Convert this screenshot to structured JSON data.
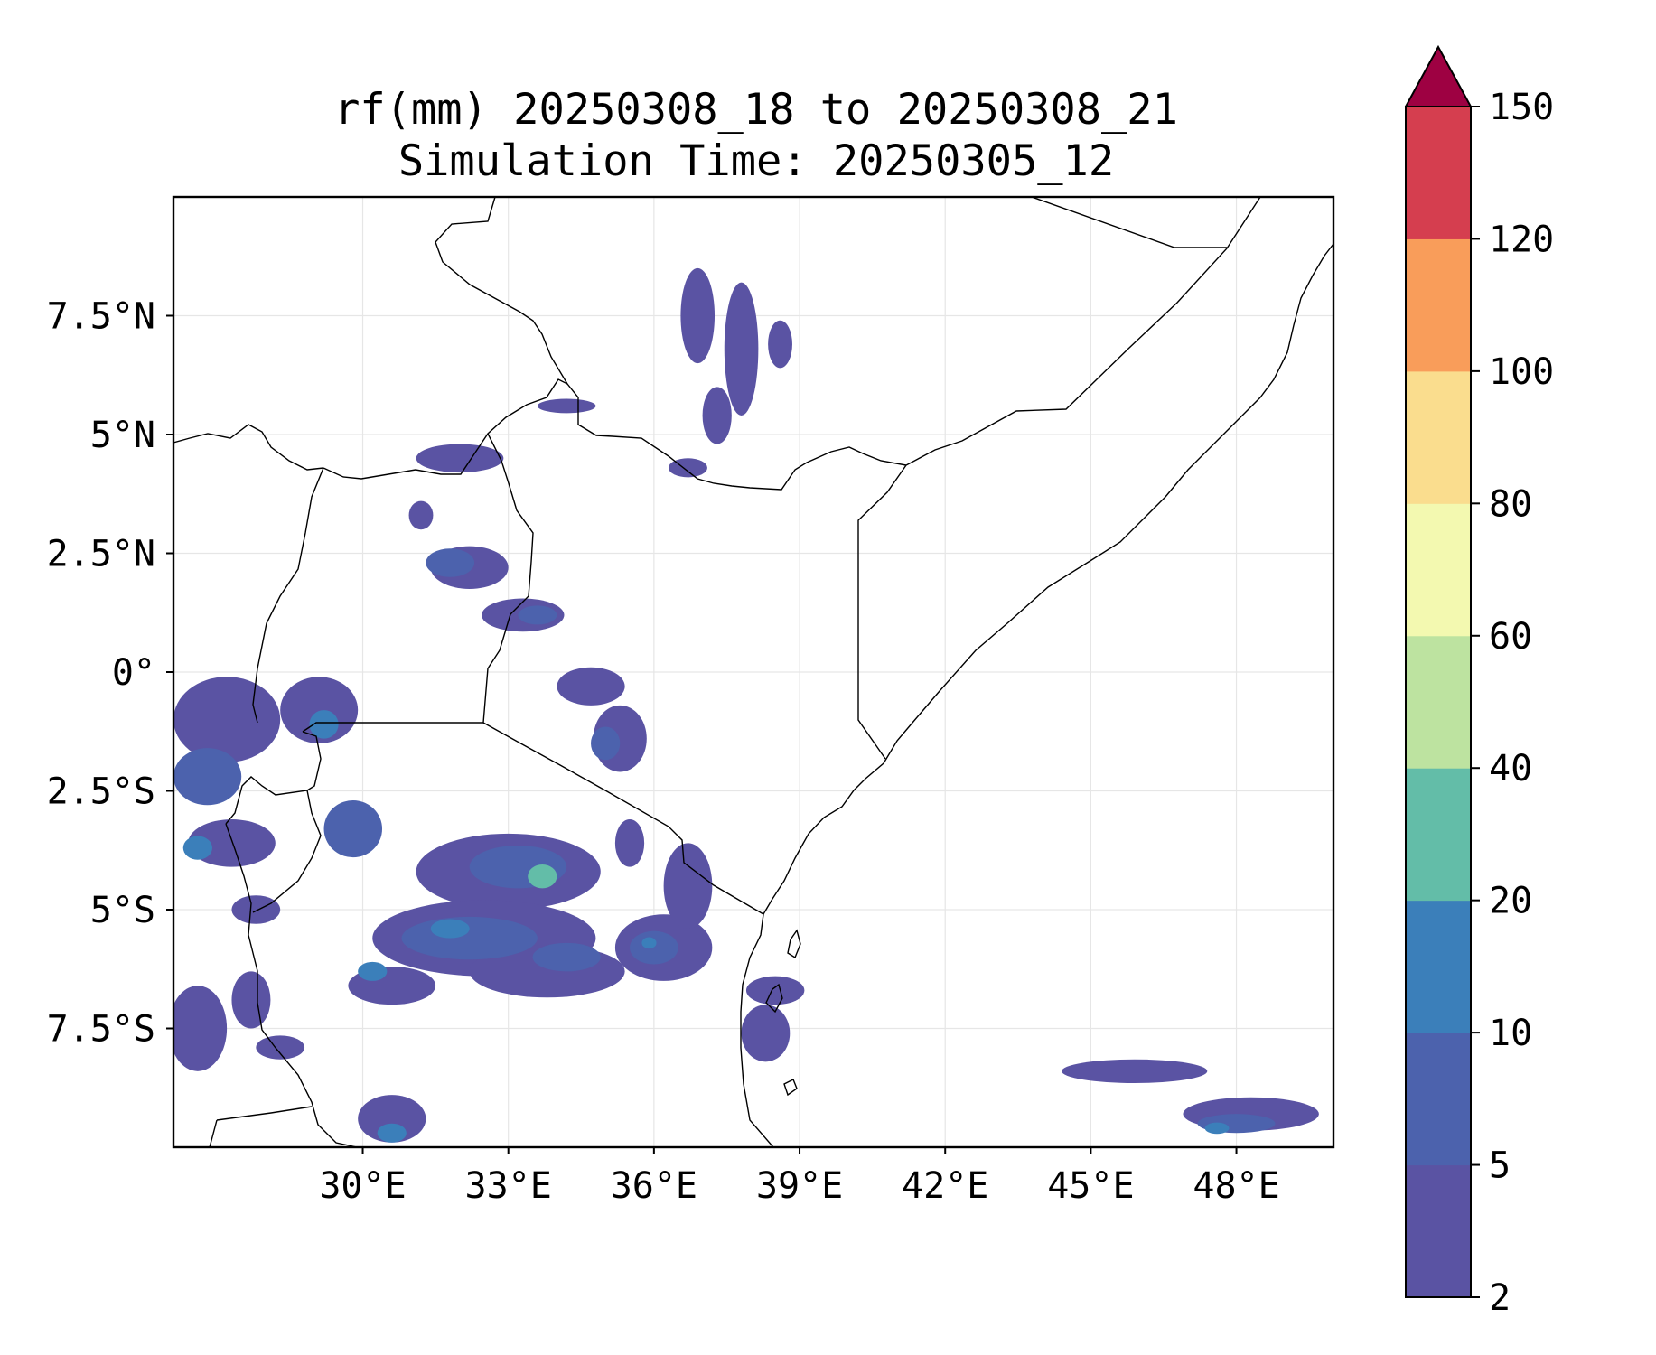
{
  "title": {
    "line1": "rf(mm) 20250308_18 to 20250308_21",
    "line2": "Simulation Time: 20250305_12"
  },
  "map": {
    "lon_range": [
      26.1,
      50.0
    ],
    "lat_range": [
      -10.0,
      10.0
    ],
    "x_ticks": [
      {
        "value": 30,
        "label": "30°E"
      },
      {
        "value": 33,
        "label": "33°E"
      },
      {
        "value": 36,
        "label": "36°E"
      },
      {
        "value": 39,
        "label": "39°E"
      },
      {
        "value": 42,
        "label": "42°E"
      },
      {
        "value": 45,
        "label": "45°E"
      },
      {
        "value": 48,
        "label": "48°E"
      }
    ],
    "y_ticks": [
      {
        "value": 7.5,
        "label": "7.5°N"
      },
      {
        "value": 5,
        "label": "5°N"
      },
      {
        "value": 2.5,
        "label": "2.5°N"
      },
      {
        "value": 0,
        "label": "0°"
      },
      {
        "value": -2.5,
        "label": "2.5°S"
      },
      {
        "value": -5,
        "label": "5°S"
      },
      {
        "value": -7.5,
        "label": "7.5°S"
      }
    ],
    "grid": true,
    "coastline_color": "#000000",
    "precip_cells": [
      {
        "lon": 36.9,
        "lat": 7.5,
        "rx": 0.35,
        "ry": 1.0,
        "level": 0
      },
      {
        "lon": 37.8,
        "lat": 6.8,
        "rx": 0.35,
        "ry": 1.4,
        "level": 0
      },
      {
        "lon": 38.6,
        "lat": 6.9,
        "rx": 0.25,
        "ry": 0.5,
        "level": 0
      },
      {
        "lon": 37.3,
        "lat": 5.4,
        "rx": 0.3,
        "ry": 0.6,
        "level": 0
      },
      {
        "lon": 36.7,
        "lat": 4.3,
        "rx": 0.4,
        "ry": 0.2,
        "level": 0
      },
      {
        "lon": 34.2,
        "lat": 5.6,
        "rx": 0.6,
        "ry": 0.15,
        "level": 0
      },
      {
        "lon": 32.0,
        "lat": 4.5,
        "rx": 0.9,
        "ry": 0.3,
        "level": 0
      },
      {
        "lon": 31.2,
        "lat": 3.3,
        "rx": 0.25,
        "ry": 0.3,
        "level": 0
      },
      {
        "lon": 32.2,
        "lat": 2.2,
        "rx": 0.8,
        "ry": 0.45,
        "level": 0
      },
      {
        "lon": 33.3,
        "lat": 1.2,
        "rx": 0.85,
        "ry": 0.35,
        "level": 0
      },
      {
        "lon": 31.8,
        "lat": 2.3,
        "rx": 0.5,
        "ry": 0.3,
        "level": 1
      },
      {
        "lon": 33.6,
        "lat": 1.2,
        "rx": 0.4,
        "ry": 0.2,
        "level": 1
      },
      {
        "lon": 34.7,
        "lat": -0.3,
        "rx": 0.7,
        "ry": 0.4,
        "level": 0
      },
      {
        "lon": 35.3,
        "lat": -1.4,
        "rx": 0.55,
        "ry": 0.7,
        "level": 0
      },
      {
        "lon": 35.0,
        "lat": -1.5,
        "rx": 0.3,
        "ry": 0.35,
        "level": 1
      },
      {
        "lon": 27.2,
        "lat": -1.0,
        "rx": 1.1,
        "ry": 0.9,
        "level": 0
      },
      {
        "lon": 29.1,
        "lat": -0.8,
        "rx": 0.8,
        "ry": 0.7,
        "level": 0
      },
      {
        "lon": 29.2,
        "lat": -1.1,
        "rx": 0.3,
        "ry": 0.3,
        "level": 2
      },
      {
        "lon": 26.8,
        "lat": -2.2,
        "rx": 0.7,
        "ry": 0.6,
        "level": 1
      },
      {
        "lon": 27.3,
        "lat": -3.6,
        "rx": 0.9,
        "ry": 0.5,
        "level": 0
      },
      {
        "lon": 26.6,
        "lat": -3.7,
        "rx": 0.3,
        "ry": 0.25,
        "level": 2
      },
      {
        "lon": 29.8,
        "lat": -3.3,
        "rx": 0.6,
        "ry": 0.6,
        "level": 1
      },
      {
        "lon": 27.8,
        "lat": -5.0,
        "rx": 0.5,
        "ry": 0.3,
        "level": 0
      },
      {
        "lon": 33.0,
        "lat": -4.2,
        "rx": 1.9,
        "ry": 0.8,
        "level": 0
      },
      {
        "lon": 33.2,
        "lat": -4.1,
        "rx": 1.0,
        "ry": 0.45,
        "level": 1
      },
      {
        "lon": 33.7,
        "lat": -4.3,
        "rx": 0.3,
        "ry": 0.25,
        "level": 3
      },
      {
        "lon": 32.5,
        "lat": -5.6,
        "rx": 2.3,
        "ry": 0.8,
        "level": 0
      },
      {
        "lon": 32.2,
        "lat": -5.6,
        "rx": 1.4,
        "ry": 0.45,
        "level": 1
      },
      {
        "lon": 31.8,
        "lat": -5.4,
        "rx": 0.4,
        "ry": 0.2,
        "level": 2
      },
      {
        "lon": 33.8,
        "lat": -6.3,
        "rx": 1.6,
        "ry": 0.55,
        "level": 0
      },
      {
        "lon": 34.2,
        "lat": -6.0,
        "rx": 0.7,
        "ry": 0.3,
        "level": 1
      },
      {
        "lon": 36.2,
        "lat": -5.8,
        "rx": 1.0,
        "ry": 0.7,
        "level": 0
      },
      {
        "lon": 36.0,
        "lat": -5.8,
        "rx": 0.5,
        "ry": 0.35,
        "level": 1
      },
      {
        "lon": 35.9,
        "lat": -5.7,
        "rx": 0.15,
        "ry": 0.12,
        "level": 2
      },
      {
        "lon": 36.7,
        "lat": -4.5,
        "rx": 0.5,
        "ry": 0.9,
        "level": 0
      },
      {
        "lon": 35.5,
        "lat": -3.6,
        "rx": 0.3,
        "ry": 0.5,
        "level": 0
      },
      {
        "lon": 30.6,
        "lat": -6.6,
        "rx": 0.9,
        "ry": 0.4,
        "level": 0
      },
      {
        "lon": 30.2,
        "lat": -6.3,
        "rx": 0.3,
        "ry": 0.2,
        "level": 2
      },
      {
        "lon": 26.6,
        "lat": -7.5,
        "rx": 0.6,
        "ry": 0.9,
        "level": 0
      },
      {
        "lon": 27.7,
        "lat": -6.9,
        "rx": 0.4,
        "ry": 0.6,
        "level": 0
      },
      {
        "lon": 28.3,
        "lat": -7.9,
        "rx": 0.5,
        "ry": 0.25,
        "level": 0
      },
      {
        "lon": 30.6,
        "lat": -9.4,
        "rx": 0.7,
        "ry": 0.5,
        "level": 0
      },
      {
        "lon": 30.6,
        "lat": -9.7,
        "rx": 0.3,
        "ry": 0.2,
        "level": 2
      },
      {
        "lon": 38.5,
        "lat": -6.7,
        "rx": 0.6,
        "ry": 0.3,
        "level": 0
      },
      {
        "lon": 38.3,
        "lat": -7.6,
        "rx": 0.5,
        "ry": 0.6,
        "level": 0
      },
      {
        "lon": 45.9,
        "lat": -8.4,
        "rx": 1.5,
        "ry": 0.25,
        "level": 0
      },
      {
        "lon": 48.3,
        "lat": -9.3,
        "rx": 1.4,
        "ry": 0.35,
        "level": 0
      },
      {
        "lon": 48.0,
        "lat": -9.5,
        "rx": 0.8,
        "ry": 0.2,
        "level": 1
      },
      {
        "lon": 47.6,
        "lat": -9.6,
        "rx": 0.25,
        "ry": 0.12,
        "level": 2
      }
    ]
  },
  "colorbar": {
    "boundaries": [
      2,
      5,
      10,
      20,
      40,
      60,
      80,
      100,
      120,
      150
    ],
    "labels": [
      "2",
      "5",
      "10",
      "20",
      "40",
      "60",
      "80",
      "100",
      "120",
      "150"
    ],
    "colors": [
      "#5a53a3",
      "#4c62ad",
      "#3b7fba",
      "#63bda8",
      "#bde3a0",
      "#f3f9b0",
      "#fadd8e",
      "#f99d5a",
      "#d53e4f"
    ],
    "extend_color": "#9e0142"
  }
}
